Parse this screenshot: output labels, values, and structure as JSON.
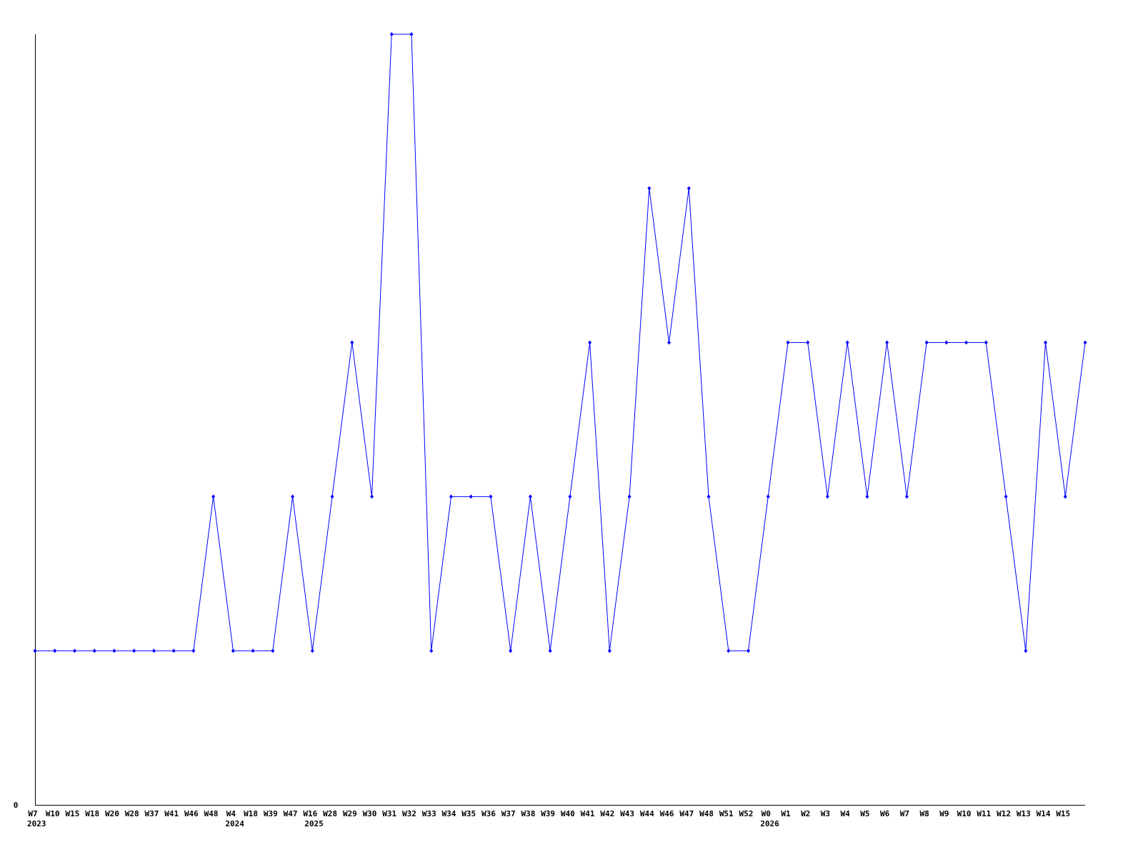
{
  "chart_data": {
    "type": "line",
    "title": "",
    "xlabel": "",
    "ylabel": "",
    "ylim": [
      0,
      5
    ],
    "y_tick_labels": [
      "0"
    ],
    "grid": false,
    "line_color": "#0000ff",
    "marker": "diamond",
    "categories": [
      "W7",
      "W10",
      "W15",
      "W18",
      "W20",
      "W28",
      "W37",
      "W41",
      "W46",
      "W48",
      "W4",
      "W18",
      "W39",
      "W47",
      "W16",
      "W28",
      "W29",
      "W30",
      "W31",
      "W32",
      "W33",
      "W34",
      "W35",
      "W36",
      "W37",
      "W38",
      "W39",
      "W40",
      "W41",
      "W42",
      "W43",
      "W44",
      "W46",
      "W47",
      "W48",
      "W51",
      "W52",
      "W0",
      "W1",
      "W2",
      "W3",
      "W4",
      "W5",
      "W6",
      "W7",
      "W8",
      "W9",
      "W10",
      "W11",
      "W12",
      "W13",
      "W14",
      "W15",
      ""
    ],
    "year_labels": [
      {
        "year": "2023",
        "at_index": 0
      },
      {
        "year": "2024",
        "at_index": 10
      },
      {
        "year": "2025",
        "at_index": 14
      },
      {
        "year": "2026",
        "at_index": 37
      }
    ],
    "values": [
      1,
      1,
      1,
      1,
      1,
      1,
      1,
      1,
      1,
      2,
      1,
      1,
      1,
      2,
      1,
      2,
      3,
      2,
      5,
      5,
      1,
      2,
      2,
      2,
      1,
      2,
      1,
      2,
      3,
      1,
      2,
      4,
      3,
      4,
      2,
      1,
      1,
      2,
      3,
      3,
      2,
      3,
      2,
      3,
      2,
      3,
      3,
      3,
      3,
      2,
      1,
      3,
      2,
      3
    ]
  }
}
